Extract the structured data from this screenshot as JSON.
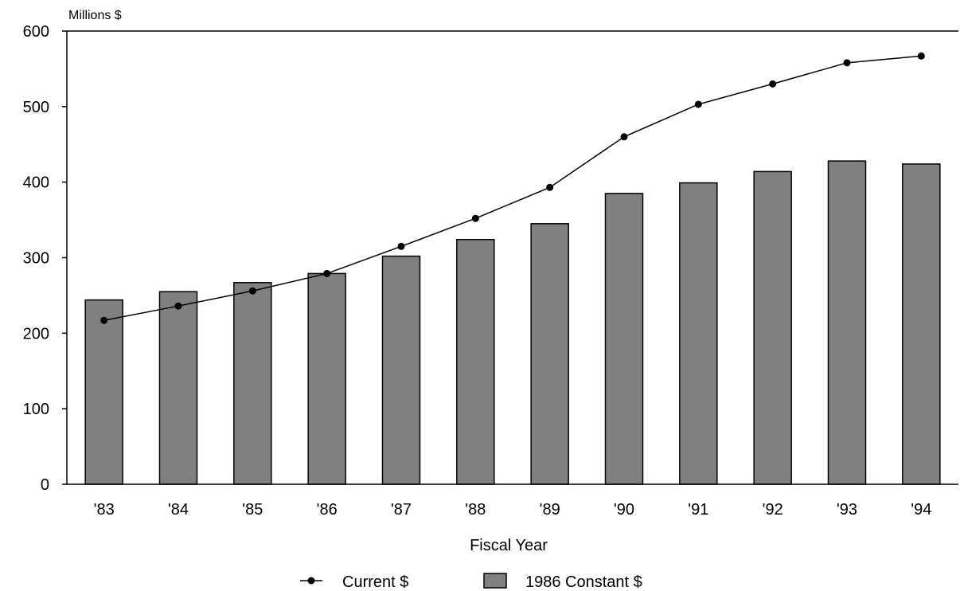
{
  "chart_data": {
    "type": "bar",
    "title": "",
    "ylabel": "Millions $",
    "xlabel": "Fiscal Year",
    "categories": [
      "'83",
      "'84",
      "'85",
      "'86",
      "'87",
      "'88",
      "'89",
      "'90",
      "'91",
      "'92",
      "'93",
      "'94"
    ],
    "ylim": [
      0,
      600
    ],
    "yticks": [
      0,
      100,
      200,
      300,
      400,
      500,
      600
    ],
    "grid": false,
    "legend_position": "bottom",
    "series": [
      {
        "name": "1986 Constant $",
        "type": "bar",
        "color": "#808080",
        "values": [
          244,
          255,
          267,
          279,
          302,
          324,
          345,
          385,
          399,
          414,
          428,
          424
        ]
      },
      {
        "name": "Current $",
        "type": "line",
        "color": "#000000",
        "values": [
          217,
          236,
          256,
          279,
          315,
          352,
          393,
          460,
          503,
          530,
          558,
          567
        ]
      }
    ]
  }
}
